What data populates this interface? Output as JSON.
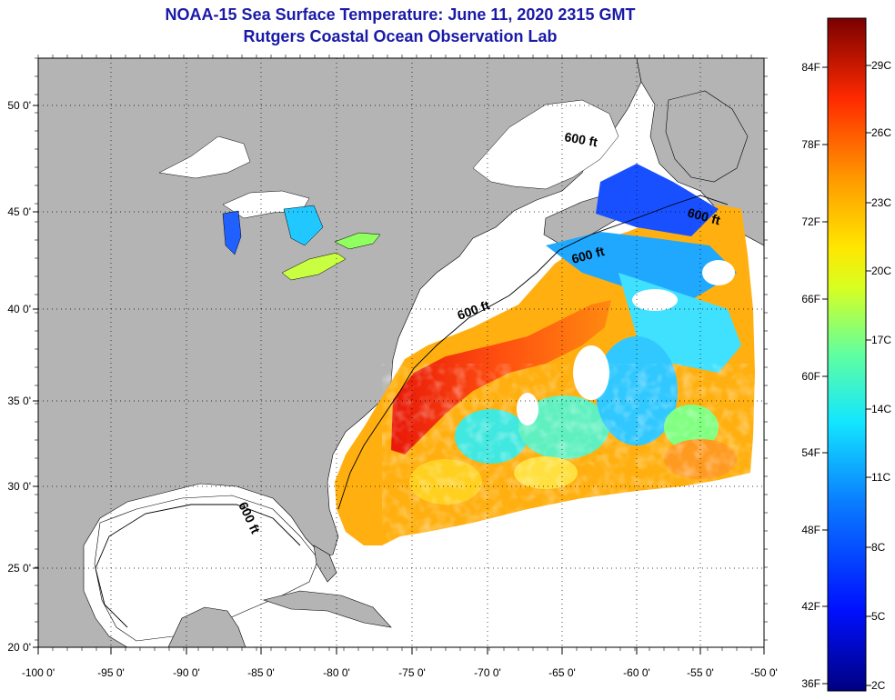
{
  "header": {
    "title": "NOAA-15 Sea Surface Temperature:  June 11, 2020 2315 GMT",
    "subtitle": "Rutgers Coastal Ocean Observation Lab"
  },
  "axes": {
    "lat_ticks": [
      "50 0'",
      "45 0'",
      "40 0'",
      "35 0'",
      "30 0'",
      "25 0'",
      "20 0'"
    ],
    "lon_ticks": [
      "-100 0'",
      "-95 0'",
      "-90 0'",
      "-85 0'",
      "-80 0'",
      "-75 0'",
      "-70 0'",
      "-65 0'",
      "-60 0'",
      "-55 0'",
      "-50 0'"
    ]
  },
  "contour_label": "600 ft",
  "colorbar": {
    "fahrenheit": [
      "84F",
      "78F",
      "72F",
      "66F",
      "60F",
      "54F",
      "48F",
      "42F",
      "36F"
    ],
    "celsius": [
      "29C",
      "26C",
      "23C",
      "20C",
      "17C",
      "14C",
      "11C",
      "8C",
      "5C",
      "2C"
    ]
  },
  "colors": {
    "title": "#1a1aa8",
    "land": "#b4b4b4",
    "no_data": "#ffffff"
  }
}
